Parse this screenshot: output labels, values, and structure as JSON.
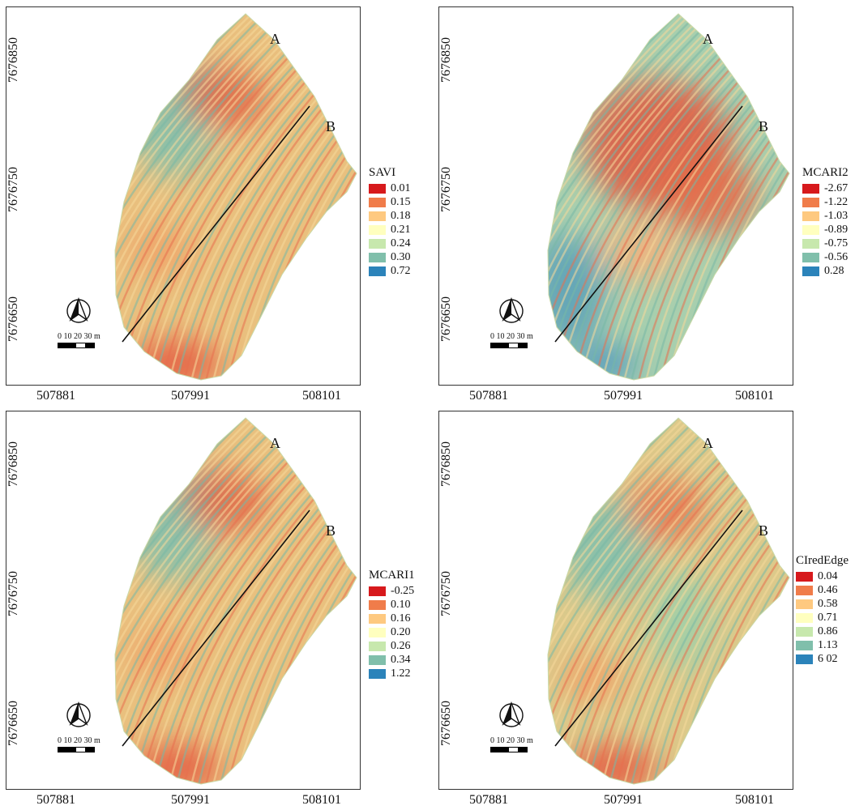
{
  "panels": [
    {
      "id": "savi",
      "index_name": "SAVI",
      "point_a": "A",
      "point_b": "B",
      "y_ticks": [
        "7676850",
        "7676750",
        "7676650"
      ],
      "x_ticks": [
        "507881",
        "507991",
        "508101"
      ],
      "scale": {
        "labels": "0  10 20  30 m"
      },
      "legend": [
        {
          "value": "0.01",
          "color": "#d7191c"
        },
        {
          "value": "0.15",
          "color": "#f07c4a"
        },
        {
          "value": "0.18",
          "color": "#fec980"
        },
        {
          "value": "0.21",
          "color": "#ffffbf"
        },
        {
          "value": "0.24",
          "color": "#c7e8ad"
        },
        {
          "value": "0.30",
          "color": "#80bfab"
        },
        {
          "value": "0.72",
          "color": "#2b83ba"
        }
      ]
    },
    {
      "id": "mcari2",
      "index_name": "MCARI2",
      "point_a": "A",
      "point_b": "B",
      "y_ticks": [
        "7676850",
        "7676750",
        "7676650"
      ],
      "x_ticks": [
        "507881",
        "507991",
        "508101"
      ],
      "scale": {
        "labels": "0  10 20  30 m"
      },
      "legend": [
        {
          "value": "-2.67",
          "color": "#d7191c"
        },
        {
          "value": "-1.22",
          "color": "#f07c4a"
        },
        {
          "value": "-1.03",
          "color": "#fec980"
        },
        {
          "value": "-0.89",
          "color": "#ffffbf"
        },
        {
          "value": "-0.75",
          "color": "#c7e8ad"
        },
        {
          "value": "-0.56",
          "color": "#80bfab"
        },
        {
          "value": "0.28",
          "color": "#2b83ba"
        }
      ]
    },
    {
      "id": "mcari1",
      "index_name": "MCARI1",
      "point_a": "A",
      "point_b": "B",
      "y_ticks": [
        "7676850",
        "7676750",
        "7676650"
      ],
      "x_ticks": [
        "507881",
        "507991",
        "508101"
      ],
      "scale": {
        "labels": "0  10 20  30 m"
      },
      "legend": [
        {
          "value": "-0.25",
          "color": "#d7191c"
        },
        {
          "value": "0.10",
          "color": "#f07c4a"
        },
        {
          "value": "0.16",
          "color": "#fec980"
        },
        {
          "value": "0.20",
          "color": "#ffffbf"
        },
        {
          "value": "0.26",
          "color": "#c7e8ad"
        },
        {
          "value": "0.34",
          "color": "#80bfab"
        },
        {
          "value": "1.22",
          "color": "#2b83ba"
        }
      ]
    },
    {
      "id": "ciredge",
      "index_name": "CIredEdge",
      "point_a": "A",
      "point_b": "B",
      "y_ticks": [
        "7676850",
        "7676750",
        "7676650"
      ],
      "x_ticks": [
        "507881",
        "507991",
        "508101"
      ],
      "scale": {
        "labels": "0  10 20  30 m"
      },
      "legend": [
        {
          "value": "0.04",
          "color": "#d7191c"
        },
        {
          "value": "0.46",
          "color": "#f07c4a"
        },
        {
          "value": "0.58",
          "color": "#fec980"
        },
        {
          "value": "0.71",
          "color": "#ffffbf"
        },
        {
          "value": "0.86",
          "color": "#c7e8ad"
        },
        {
          "value": "1.13",
          "color": "#80bfab"
        },
        {
          "value": "6 02",
          "color": "#2b83ba"
        }
      ]
    }
  ]
}
